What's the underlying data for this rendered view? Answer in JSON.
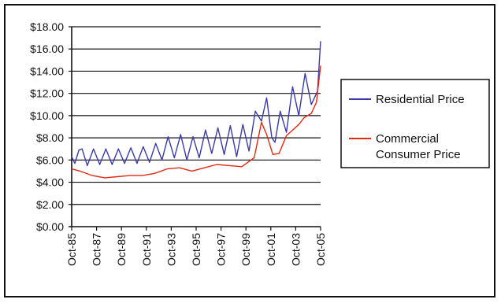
{
  "chart_data": {
    "type": "line",
    "title": "",
    "xlabel": "",
    "ylabel": "",
    "ylim": [
      0,
      18
    ],
    "yticks": [
      "$0.00",
      "$2.00",
      "$4.00",
      "$6.00",
      "$8.00",
      "$10.00",
      "$12.00",
      "$14.00",
      "$16.00",
      "$18.00"
    ],
    "x_start": "1985-10",
    "x_end": "2005-10",
    "xticks": [
      "Oct-85",
      "Oct-87",
      "Oct-89",
      "Oct-91",
      "Oct-93",
      "Oct-95",
      "Oct-97",
      "Oct-99",
      "Oct-01",
      "Oct-03",
      "Oct-05"
    ],
    "grid": true,
    "legend_position": "right",
    "series": [
      {
        "name": "Residential Price",
        "color": "#3a3aa8",
        "points": [
          [
            "1985-10",
            6.3
          ],
          [
            "1986-01",
            5.7
          ],
          [
            "1986-05",
            6.9
          ],
          [
            "1986-08",
            7.0
          ],
          [
            "1987-01",
            5.5
          ],
          [
            "1987-07",
            7.0
          ],
          [
            "1988-01",
            5.6
          ],
          [
            "1988-07",
            7.0
          ],
          [
            "1989-01",
            5.6
          ],
          [
            "1989-07",
            7.0
          ],
          [
            "1990-01",
            5.7
          ],
          [
            "1990-07",
            7.1
          ],
          [
            "1991-01",
            5.7
          ],
          [
            "1991-07",
            7.2
          ],
          [
            "1992-01",
            5.8
          ],
          [
            "1992-07",
            7.5
          ],
          [
            "1993-01",
            6.0
          ],
          [
            "1993-07",
            8.1
          ],
          [
            "1994-01",
            6.2
          ],
          [
            "1994-07",
            8.3
          ],
          [
            "1995-01",
            6.0
          ],
          [
            "1995-07",
            8.1
          ],
          [
            "1996-01",
            6.2
          ],
          [
            "1996-07",
            8.7
          ],
          [
            "1997-01",
            6.6
          ],
          [
            "1997-07",
            8.9
          ],
          [
            "1998-01",
            6.5
          ],
          [
            "1998-07",
            9.1
          ],
          [
            "1999-01",
            6.3
          ],
          [
            "1999-07",
            9.2
          ],
          [
            "2000-01",
            6.8
          ],
          [
            "2000-07",
            10.4
          ],
          [
            "2001-01",
            9.5
          ],
          [
            "2001-06",
            11.6
          ],
          [
            "2001-11",
            8.0
          ],
          [
            "2002-02",
            7.6
          ],
          [
            "2002-07",
            10.4
          ],
          [
            "2003-01",
            8.5
          ],
          [
            "2003-07",
            12.6
          ],
          [
            "2004-01",
            10.0
          ],
          [
            "2004-07",
            13.8
          ],
          [
            "2005-01",
            11.0
          ],
          [
            "2005-07",
            12.2
          ],
          [
            "2005-10",
            16.7
          ]
        ]
      },
      {
        "name": "Commercial Consumer Price",
        "color": "#e02a14",
        "points": [
          [
            "1985-10",
            5.2
          ],
          [
            "1986-06",
            5.0
          ],
          [
            "1987-06",
            4.6
          ],
          [
            "1988-06",
            4.4
          ],
          [
            "1989-06",
            4.5
          ],
          [
            "1990-06",
            4.6
          ],
          [
            "1991-06",
            4.6
          ],
          [
            "1992-06",
            4.8
          ],
          [
            "1993-06",
            5.2
          ],
          [
            "1994-06",
            5.3
          ],
          [
            "1995-06",
            5.0
          ],
          [
            "1996-06",
            5.3
          ],
          [
            "1997-06",
            5.6
          ],
          [
            "1998-06",
            5.5
          ],
          [
            "1999-06",
            5.4
          ],
          [
            "2000-06",
            6.2
          ],
          [
            "2001-01",
            9.4
          ],
          [
            "2001-06",
            8.3
          ],
          [
            "2001-12",
            6.5
          ],
          [
            "2002-06",
            6.6
          ],
          [
            "2003-01",
            8.2
          ],
          [
            "2003-06",
            8.6
          ],
          [
            "2004-01",
            9.2
          ],
          [
            "2004-06",
            9.8
          ],
          [
            "2005-01",
            10.2
          ],
          [
            "2005-06",
            11.2
          ],
          [
            "2005-10",
            14.5
          ]
        ]
      }
    ]
  }
}
